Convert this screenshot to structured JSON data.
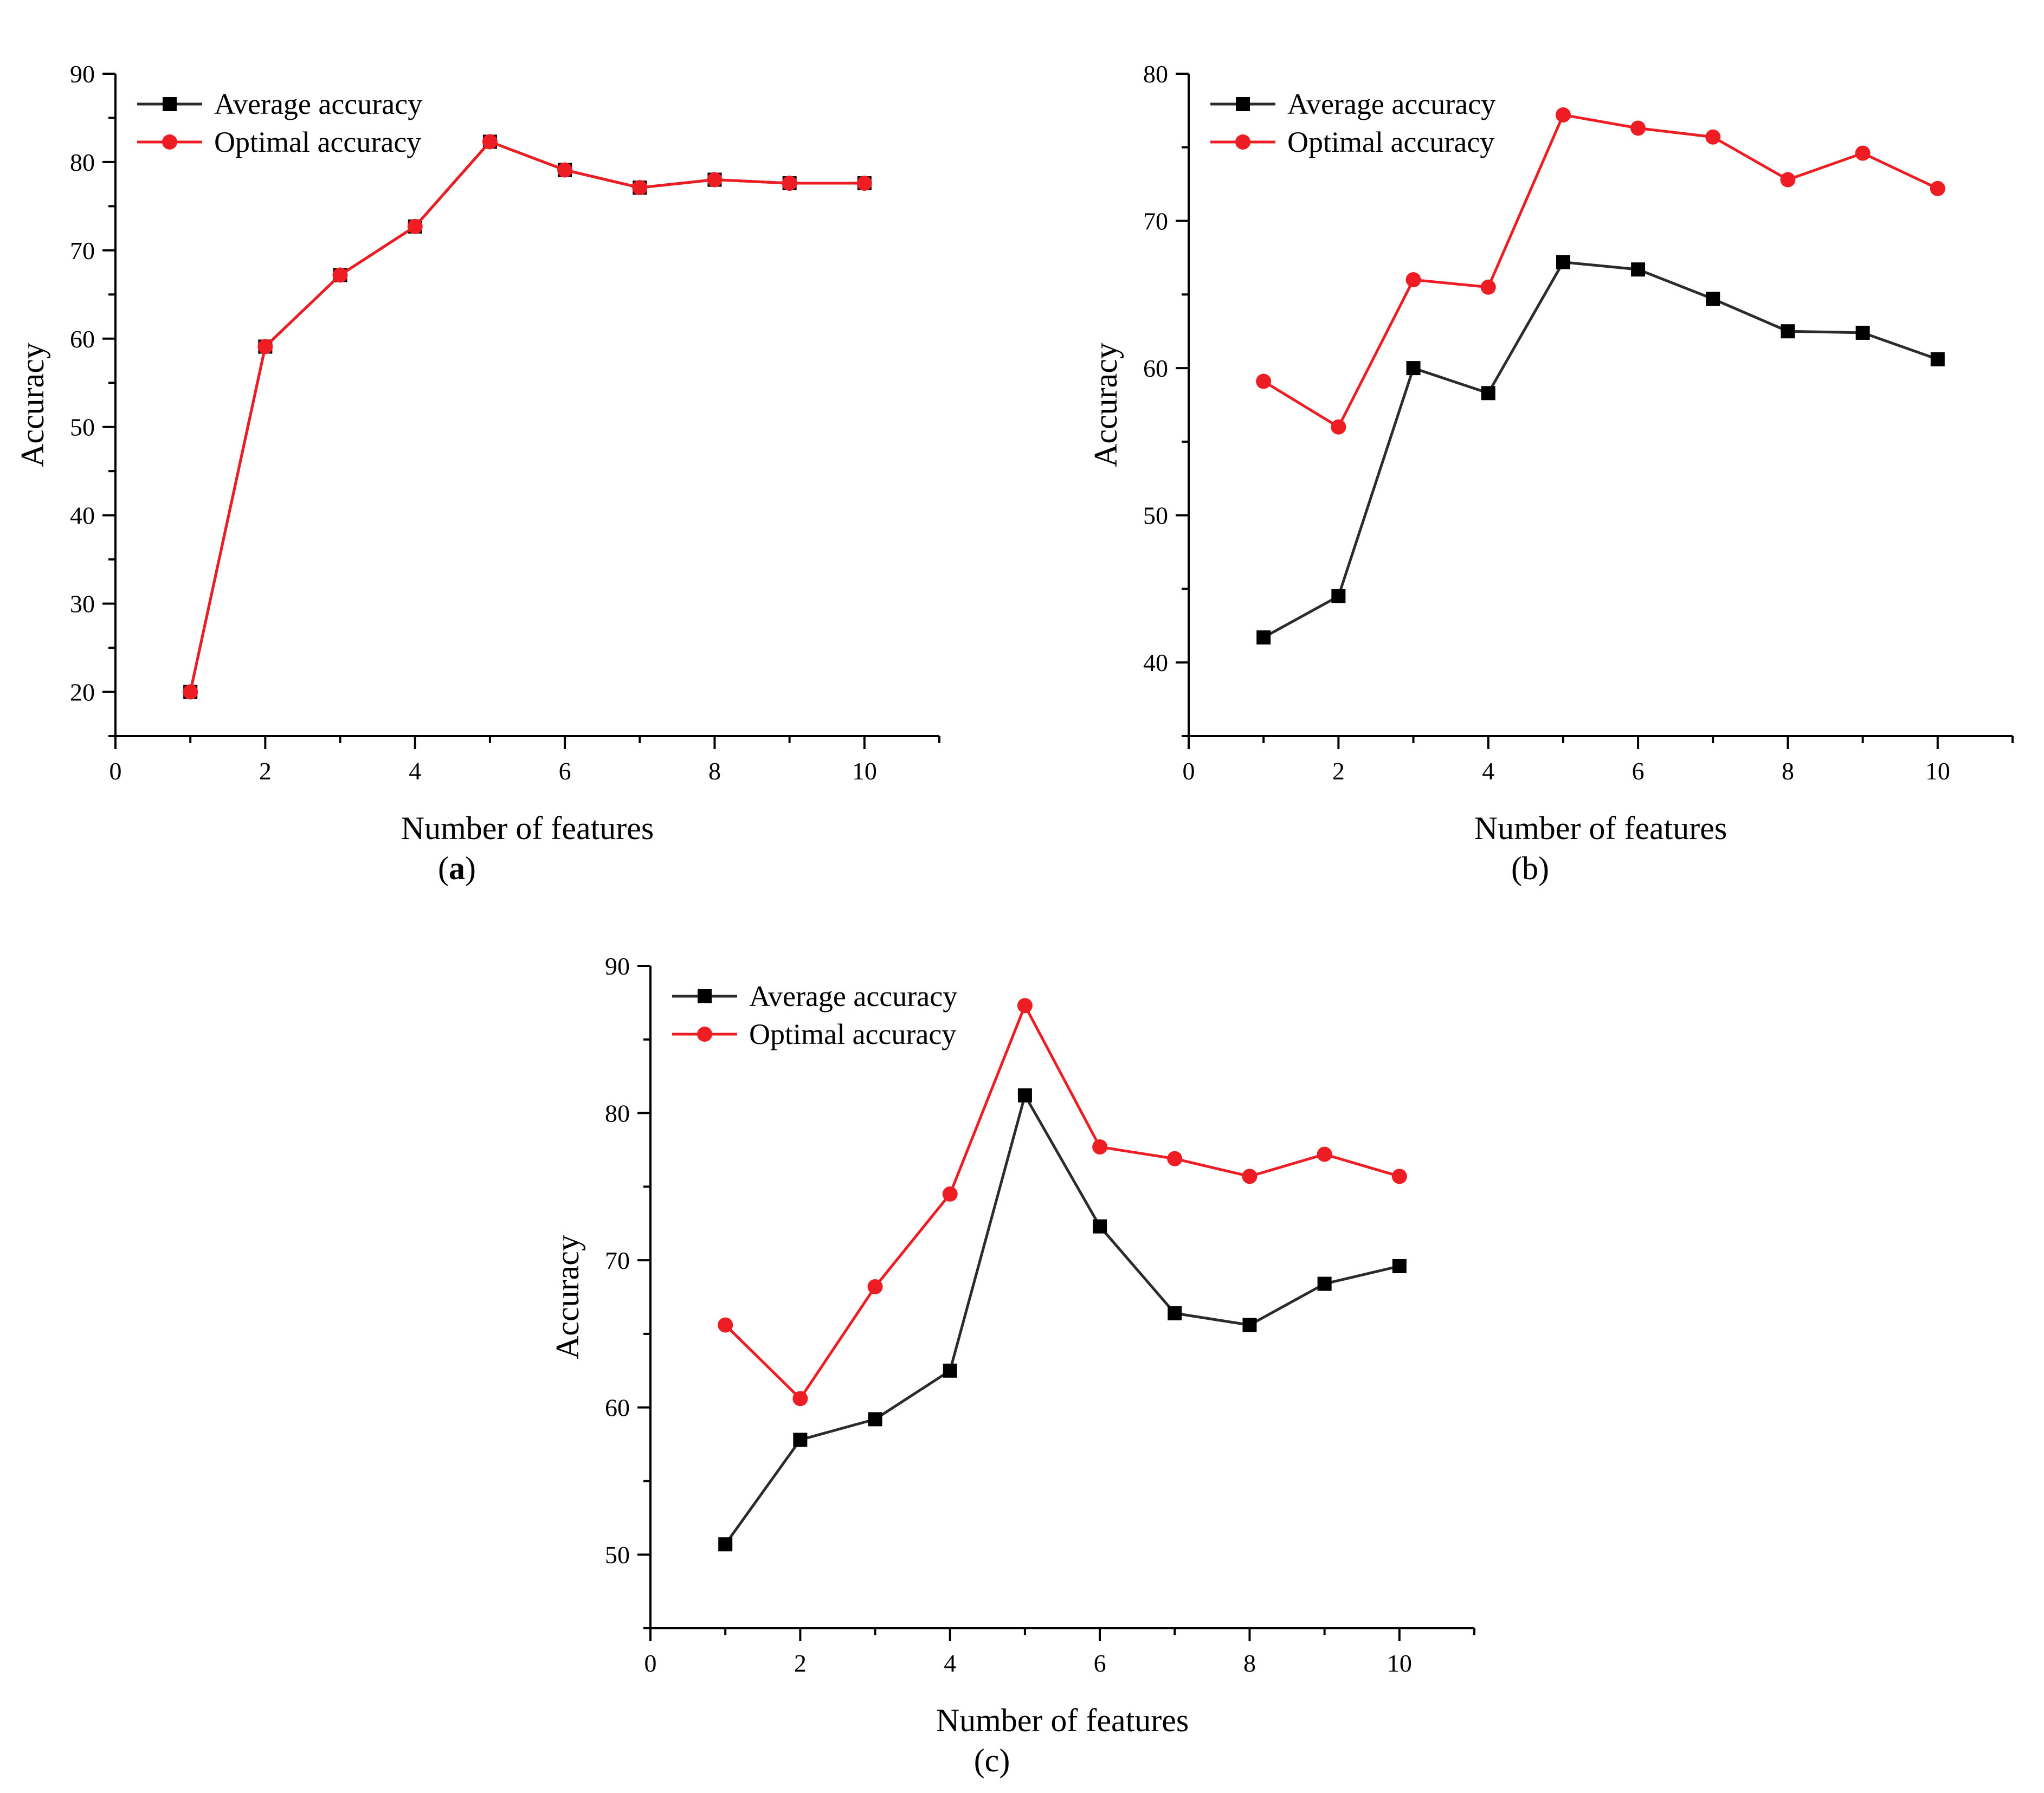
{
  "colors": {
    "average": "#2b2b2b",
    "optimal": "#ee1c23",
    "axis": "#000000"
  },
  "chart_data": [
    {
      "panel_label": "a",
      "type": "line",
      "xlabel": "Number of features",
      "ylabel": "Accuracy",
      "xlim": [
        0,
        11
      ],
      "ylim": [
        15,
        90
      ],
      "xticks": [
        0,
        2,
        4,
        6,
        8,
        10
      ],
      "yticks": [
        20,
        30,
        40,
        50,
        60,
        70,
        80,
        90
      ],
      "x": [
        1,
        2,
        3,
        4,
        5,
        6,
        7,
        8,
        9,
        10
      ],
      "legend_position": "top-left",
      "series": [
        {
          "name": "Average accuracy",
          "marker": "square",
          "color": "#2b2b2b",
          "values": [
            20.0,
            59.1,
            67.2,
            72.7,
            82.3,
            79.1,
            77.1,
            78.0,
            77.6,
            77.6
          ]
        },
        {
          "name": "Optimal accuracy",
          "marker": "circle",
          "color": "#ee1c23",
          "values": [
            20.0,
            59.1,
            67.2,
            72.7,
            82.3,
            79.1,
            77.1,
            78.0,
            77.6,
            77.6
          ]
        }
      ]
    },
    {
      "panel_label": "b",
      "type": "line",
      "xlabel": "Number of features",
      "ylabel": "Accuracy",
      "xlim": [
        0,
        11
      ],
      "ylim": [
        35,
        80
      ],
      "xticks": [
        0,
        2,
        4,
        6,
        8,
        10
      ],
      "yticks": [
        40,
        50,
        60,
        70,
        80
      ],
      "x": [
        1,
        2,
        3,
        4,
        5,
        6,
        7,
        8,
        9,
        10
      ],
      "legend_position": "top-left",
      "series": [
        {
          "name": "Average accuracy",
          "marker": "square",
          "color": "#2b2b2b",
          "values": [
            41.7,
            44.5,
            60.0,
            58.3,
            67.2,
            66.7,
            64.7,
            62.5,
            62.4,
            60.6
          ]
        },
        {
          "name": "Optimal accuracy",
          "marker": "circle",
          "color": "#ee1c23",
          "values": [
            59.1,
            56.0,
            66.0,
            65.5,
            77.2,
            76.3,
            75.7,
            72.8,
            74.6,
            72.2
          ]
        }
      ]
    },
    {
      "panel_label": "c",
      "type": "line",
      "xlabel": "Number of features",
      "ylabel": "Accuracy",
      "xlim": [
        0,
        11
      ],
      "ylim": [
        45,
        90
      ],
      "xticks": [
        0,
        2,
        4,
        6,
        8,
        10
      ],
      "yticks": [
        50,
        60,
        70,
        80,
        90
      ],
      "x": [
        1,
        2,
        3,
        4,
        5,
        6,
        7,
        8,
        9,
        10
      ],
      "legend_position": "top-left",
      "series": [
        {
          "name": "Average accuracy",
          "marker": "square",
          "color": "#2b2b2b",
          "values": [
            50.7,
            57.8,
            59.2,
            62.5,
            81.2,
            72.3,
            66.4,
            65.6,
            68.4,
            69.6
          ]
        },
        {
          "name": "Optimal accuracy",
          "marker": "circle",
          "color": "#ee1c23",
          "values": [
            65.6,
            60.6,
            68.2,
            74.5,
            87.3,
            77.7,
            76.9,
            75.7,
            77.2,
            75.7
          ]
        }
      ]
    }
  ]
}
